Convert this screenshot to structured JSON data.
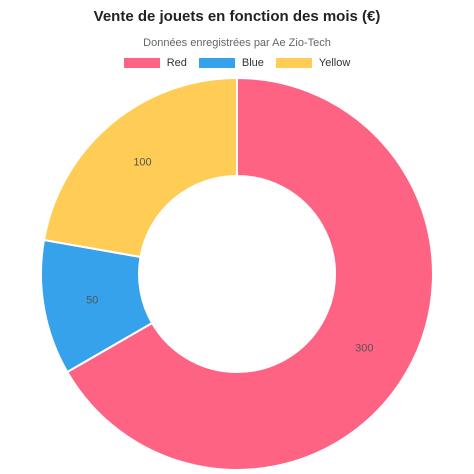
{
  "chart_data": {
    "type": "pie",
    "variant": "doughnut",
    "title": "Vente de jouets en fonction des mois (€)",
    "subtitle": "Données enregistrées par Ae Zio-Tech",
    "legend_position": "top",
    "categories": [
      "Red",
      "Blue",
      "Yellow"
    ],
    "values": [
      300,
      50,
      100
    ],
    "value_labels": [
      "300",
      "50",
      "100"
    ],
    "colors": [
      "#ff6384",
      "#36a2eb",
      "#ffcd56"
    ]
  }
}
